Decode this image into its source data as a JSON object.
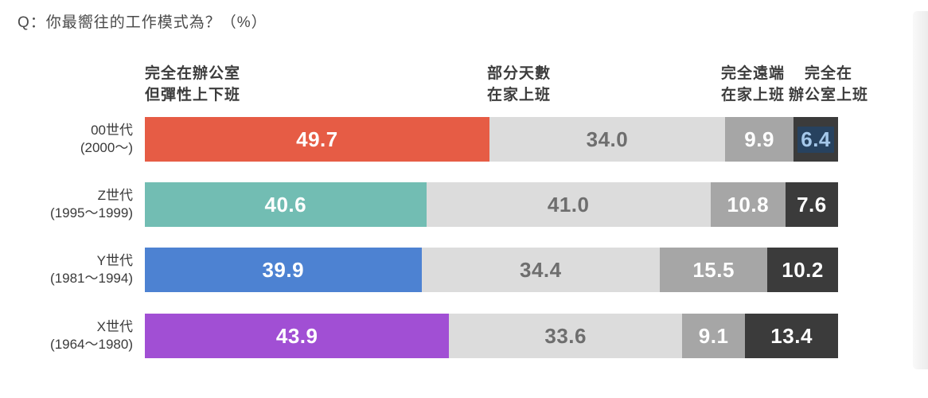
{
  "title": "Q：你最嚮往的工作模式為？（%）",
  "chart_data": {
    "type": "bar",
    "orientation": "horizontal",
    "stacked": true,
    "unit": "%",
    "title": "Q：你最嚮往的工作模式為？（%）",
    "x_range": [
      0,
      100
    ],
    "grid": false,
    "legend_position": "top",
    "segment_headers": [
      {
        "line1": "完全在辦公室",
        "line2": "但彈性上下班"
      },
      {
        "line1": "部分天數",
        "line2": "在家上班"
      },
      {
        "line1": "完全遠端",
        "line2": "在家上班"
      },
      {
        "line1": "完全在",
        "line2": "辦公室上班"
      }
    ],
    "categories": [
      {
        "name": "00世代",
        "period": "(2000～)"
      },
      {
        "name": "Z世代",
        "period": "(1995～1999)"
      },
      {
        "name": "Y世代",
        "period": "(1981～1994)"
      },
      {
        "name": "X世代",
        "period": "(1964～1980)"
      }
    ],
    "series": [
      {
        "name": "完全在辦公室但彈性上下班",
        "values": [
          49.7,
          40.6,
          39.9,
          43.9
        ]
      },
      {
        "name": "部分天數在家上班",
        "values": [
          34.0,
          41.0,
          34.4,
          33.6
        ]
      },
      {
        "name": "完全遠端在家上班",
        "values": [
          9.9,
          10.8,
          15.5,
          9.1
        ]
      },
      {
        "name": "完全在辦公室上班",
        "values": [
          6.4,
          7.6,
          10.2,
          13.4
        ]
      }
    ],
    "value_format": "one_decimal",
    "colors": {
      "first_segment_by_row": [
        "#E65C45",
        "#72BDB3",
        "#4D82D2",
        "#A14FD4"
      ],
      "segment2": "#DCDCDC",
      "segment3": "#A6A6A6",
      "segment4": "#3B3B3B",
      "value_text_on_color": "#FFFFFF",
      "value_text_on_light_gray": "#6E6E6E",
      "label_text": "#3A3A3A",
      "header_text": "#3C3C3C",
      "title_text": "#4A4A4A"
    },
    "selection_highlight": {
      "row_index": 0,
      "segment_index": 3,
      "background": "#27425F",
      "text_color": "#A5C8EA"
    }
  }
}
